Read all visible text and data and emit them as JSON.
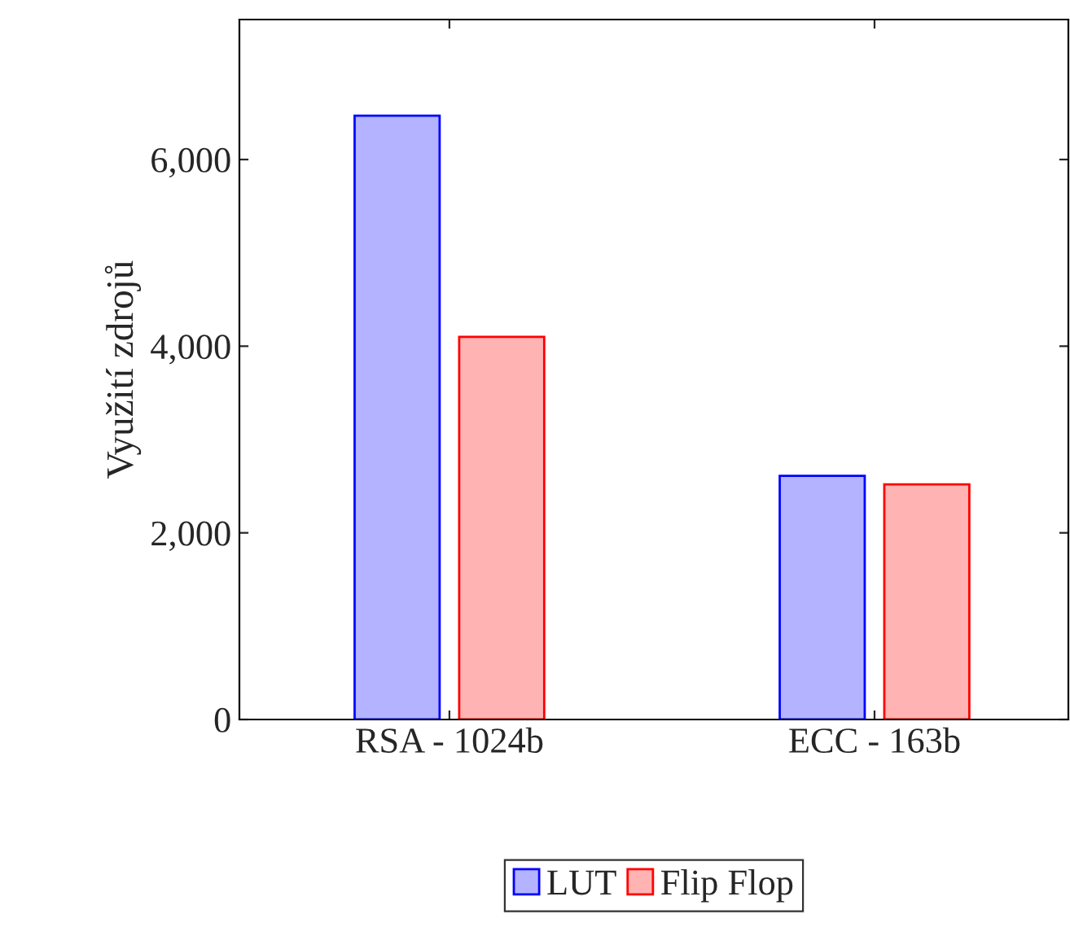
{
  "chart_data": {
    "type": "bar",
    "ylabel": "Využití zdrojů",
    "categories": [
      "RSA - 1024b",
      "ECC - 163b"
    ],
    "series": [
      {
        "name": "LUT",
        "color": "#b3b3ff",
        "values": [
          6470,
          2610
        ]
      },
      {
        "name": "Flip Flop",
        "color": "#ffb3b3",
        "values": [
          4100,
          2520
        ]
      }
    ],
    "ylim": [
      0,
      7500
    ],
    "yticks": [
      0,
      {
        "value": 2000,
        "label": "2,000"
      },
      {
        "value": 4000,
        "label": "4,000"
      },
      {
        "value": 6000,
        "label": "6,000"
      }
    ],
    "legend": "bottom",
    "grid": false
  }
}
